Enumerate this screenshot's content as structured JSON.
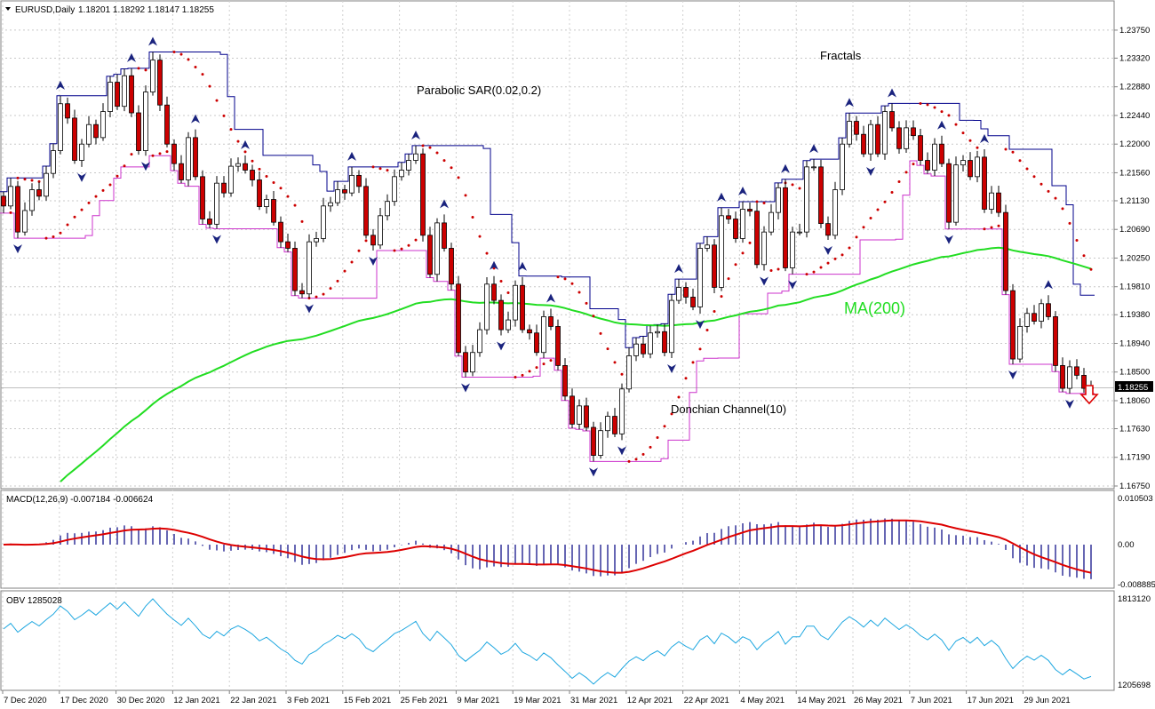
{
  "header": {
    "symbol": "EURUSD,Daily",
    "ohlc": "1.18201 1.18292 1.18147 1.18255"
  },
  "colors": {
    "bull_candle": "#ffffff",
    "bear_candle": "#cc0000",
    "candle_outline": "#000000",
    "donchian_upper": "#00008b",
    "donchian_lower": "#cc33cc",
    "parabolic_sar": "#cc0000",
    "ma200": "#22dd22",
    "fractal": "#1a237e",
    "macd_hist": "#000080",
    "macd_signal": "#dd0000",
    "obv": "#1ea7e0",
    "current_price_box": "#000000"
  },
  "labels": {
    "parabolic": "Parabolic SAR(0.02,0.2)",
    "fractals": "Fractals",
    "ma": "MA(200)",
    "donchian": "Donchian Channel(10)"
  },
  "macd_panel": {
    "title": "MACD(12,26,9) -0.007184 -0.006624",
    "ticks": [
      "0.010503",
      "0.00",
      "-0.008885"
    ]
  },
  "obv_panel": {
    "title": "OBV 1285028",
    "ticks": [
      "1813120",
      "1205698"
    ]
  },
  "signal_arrow": "down-arrow",
  "chart_data": {
    "type": "candlestick",
    "title": "EURUSD,Daily",
    "ylim": [
      1.1675,
      1.2394
    ],
    "price_ticks": [
      "1.23750",
      "1.23320",
      "1.22880",
      "1.22440",
      "1.22000",
      "1.21560",
      "1.21130",
      "1.20690",
      "1.20250",
      "1.19810",
      "1.19380",
      "1.18940",
      "1.18500",
      "1.18060",
      "1.17630",
      "1.17190",
      "1.16750"
    ],
    "current_price": "1.18255",
    "x_tick_labels": [
      "7 Dec 2020",
      "17 Dec 2020",
      "30 Dec 2020",
      "12 Jan 2021",
      "22 Jan 2021",
      "3 Feb 2021",
      "15 Feb 2021",
      "25 Feb 2021",
      "9 Mar 2021",
      "19 Mar 2021",
      "31 Mar 2021",
      "12 Apr 2021",
      "22 Apr 2021",
      "4 May 2021",
      "14 May 2021",
      "26 May 2021",
      "7 Jun 2021",
      "17 Jun 2021",
      "29 Jun 2021"
    ],
    "close": [
      1.2105,
      1.2135,
      1.2065,
      1.2098,
      1.213,
      1.212,
      1.2155,
      1.219,
      1.2262,
      1.224,
      1.2175,
      1.22,
      1.223,
      1.221,
      1.225,
      1.2295,
      1.2258,
      1.2305,
      1.2248,
      1.219,
      1.228,
      1.2329,
      1.226,
      1.22,
      1.217,
      1.2145,
      1.221,
      1.215,
      1.2085,
      1.2077,
      1.214,
      1.2125,
      1.2166,
      1.217,
      1.216,
      1.2145,
      1.2104,
      1.2115,
      1.208,
      1.205,
      1.204,
      1.1975,
      1.197,
      1.205,
      1.2055,
      1.2105,
      1.211,
      1.213,
      1.2125,
      1.2152,
      1.2135,
      1.206,
      1.2045,
      1.209,
      1.2112,
      1.215,
      1.216,
      1.2175,
      1.2185,
      1.206,
      1.2,
      1.2079,
      1.204,
      1.1985,
      1.188,
      1.185,
      1.188,
      1.1915,
      1.1985,
      1.196,
      1.1915,
      1.193,
      1.1983,
      1.1915,
      1.191,
      1.188,
      1.1935,
      1.192,
      1.186,
      1.1813,
      1.177,
      1.1798,
      1.1765,
      1.1722,
      1.176,
      1.1782,
      1.1755,
      1.1824,
      1.1875,
      1.1893,
      1.1878,
      1.191,
      1.1912,
      1.188,
      1.196,
      1.198,
      1.1965,
      1.195,
      1.204,
      1.2045,
      1.198,
      1.209,
      1.2085,
      1.2055,
      1.21,
      1.2097,
      1.2015,
      1.2065,
      1.2095,
      1.2133,
      1.201,
      1.2065,
      1.2065,
      1.2165,
      1.2165,
      1.2078,
      1.206,
      1.213,
      1.22,
      1.2235,
      1.2215,
      1.2185,
      1.223,
      1.2185,
      1.225,
      1.2225,
      1.2193,
      1.2225,
      1.2213,
      1.2175,
      1.216,
      1.22,
      1.217,
      1.208,
      1.2168,
      1.2175,
      1.215,
      1.218,
      1.21,
      1.2125,
      1.2095,
      1.1975,
      1.187,
      1.192,
      1.194,
      1.1928,
      1.1955,
      1.1935,
      1.186,
      1.1825,
      1.1858,
      1.1845,
      1.1825,
      1.1826
    ]
  }
}
